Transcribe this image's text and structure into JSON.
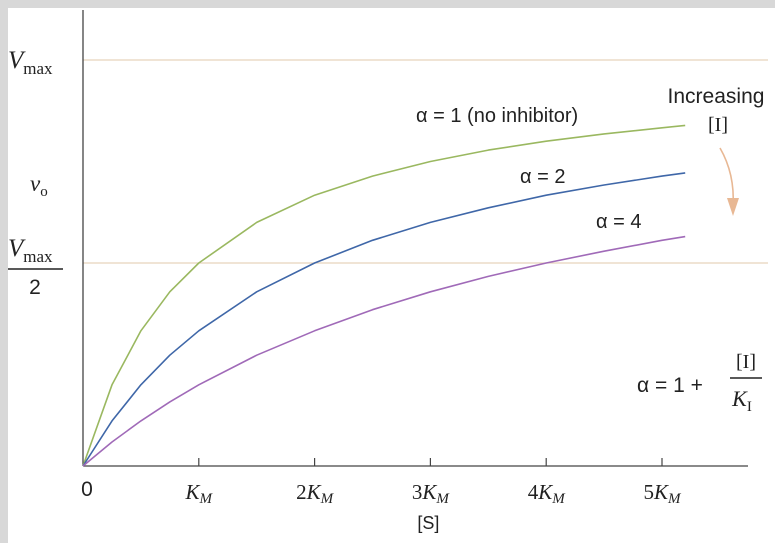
{
  "chart_data": {
    "type": "line",
    "x_axis": {
      "label": "[S]",
      "ticks": [
        {
          "value": 0,
          "coef": "0",
          "sym": ""
        },
        {
          "value": 1,
          "coef": "",
          "sym": "K"
        },
        {
          "value": 2,
          "coef": "2",
          "sym": "K"
        },
        {
          "value": 3,
          "coef": "3",
          "sym": "K"
        },
        {
          "value": 4,
          "coef": "4",
          "sym": "K"
        },
        {
          "value": 5,
          "coef": "5",
          "sym": "K"
        }
      ],
      "tick_sub": "M",
      "xlim": [
        0,
        5.9
      ]
    },
    "y_axis": {
      "label_main": "v",
      "label_sub": "o",
      "ylim": [
        0,
        1
      ],
      "reference_lines": [
        {
          "value": 1.0,
          "main": "V",
          "sub": "max",
          "denominator": ""
        },
        {
          "value": 0.5,
          "main": "V",
          "sub": "max",
          "denominator": "2"
        }
      ]
    },
    "series": [
      {
        "name": "α = 1 (no inhibitor)",
        "alpha": 1,
        "color": "#9ab860",
        "x": [
          0,
          0.25,
          0.5,
          0.75,
          1,
          1.5,
          2,
          2.5,
          3,
          3.5,
          4,
          4.5,
          5,
          5.2
        ],
        "y": [
          0,
          0.2,
          0.333,
          0.429,
          0.5,
          0.6,
          0.667,
          0.714,
          0.75,
          0.778,
          0.8,
          0.818,
          0.833,
          0.839
        ]
      },
      {
        "name": "α = 2",
        "alpha": 2,
        "color": "#3f67a8",
        "x": [
          0,
          0.25,
          0.5,
          0.75,
          1,
          1.5,
          2,
          2.5,
          3,
          3.5,
          4,
          4.5,
          5,
          5.2
        ],
        "y": [
          0,
          0.111,
          0.2,
          0.273,
          0.333,
          0.429,
          0.5,
          0.556,
          0.6,
          0.636,
          0.667,
          0.692,
          0.714,
          0.722
        ]
      },
      {
        "name": "α = 4",
        "alpha": 4,
        "color": "#a06ab8",
        "x": [
          0,
          0.25,
          0.5,
          0.75,
          1,
          1.5,
          2,
          2.5,
          3,
          3.5,
          4,
          4.5,
          5,
          5.2
        ],
        "y": [
          0,
          0.059,
          0.111,
          0.158,
          0.2,
          0.273,
          0.333,
          0.385,
          0.429,
          0.467,
          0.5,
          0.529,
          0.556,
          0.565
        ]
      }
    ],
    "annotations": {
      "increasing_line1": "Increasing",
      "increasing_line2": "[I]",
      "arrow_color": "#e8b894",
      "formula_lhs": "α = 1 +",
      "formula_numerator": "[I]",
      "formula_denominator_main": "K",
      "formula_denominator_sub": "I"
    },
    "colors": {
      "reference_line": "#e6d3bc",
      "axis": "#444444"
    }
  }
}
